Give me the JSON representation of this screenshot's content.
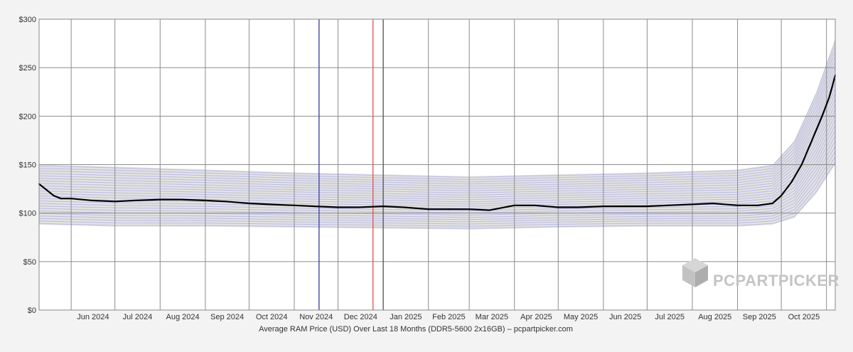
{
  "chart_data": {
    "type": "line",
    "caption": "Average RAM Price (USD) Over Last 18 Months (DDR5-5600 2x16GB) – pcpartpicker.com",
    "x_tick_labels": [
      "Jun 2024",
      "Jul 2024",
      "Aug 2024",
      "Sep 2024",
      "Oct 2024",
      "Nov 2024",
      "Dec 2024",
      "Jan 2025",
      "Feb 2025",
      "Mar 2025",
      "Apr 2025",
      "May 2025",
      "Jun 2025",
      "Jul 2025",
      "Aug 2025",
      "Sep 2025",
      "Oct 2025"
    ],
    "y_tick_labels": [
      "$0",
      "$50",
      "$100",
      "$150",
      "$200",
      "$250",
      "$300"
    ],
    "y_ticks": [
      0,
      50,
      100,
      150,
      200,
      250,
      300
    ],
    "ylim": [
      0,
      300
    ],
    "xlim": [
      "2024-05-10",
      "2025-11-07"
    ],
    "grid": true,
    "vertical_markers": [
      {
        "date": "2024-11-18",
        "color": "#3a3aa0"
      },
      {
        "date": "2024-12-25",
        "color": "#e05050"
      },
      {
        "date": "2025-01-01",
        "color": "#555555"
      }
    ],
    "series": [
      {
        "color": "#000000",
        "x": [
          "2024-05-10",
          "2024-05-15",
          "2024-05-20",
          "2024-05-25",
          "2024-06-01",
          "2024-06-15",
          "2024-07-01",
          "2024-07-15",
          "2024-08-01",
          "2024-08-15",
          "2024-09-01",
          "2024-09-15",
          "2024-10-01",
          "2024-10-15",
          "2024-11-01",
          "2024-11-15",
          "2024-12-01",
          "2024-12-15",
          "2025-01-01",
          "2025-01-15",
          "2025-02-01",
          "2025-02-15",
          "2025-03-01",
          "2025-03-15",
          "2025-04-01",
          "2025-04-15",
          "2025-05-01",
          "2025-05-15",
          "2025-06-01",
          "2025-06-15",
          "2025-07-01",
          "2025-07-15",
          "2025-08-01",
          "2025-08-15",
          "2025-09-01",
          "2025-09-15",
          "2025-09-25",
          "2025-10-01",
          "2025-10-08",
          "2025-10-15",
          "2025-10-22",
          "2025-10-29",
          "2025-11-03",
          "2025-11-07"
        ],
        "values": [
          130,
          124,
          118,
          115,
          115,
          113,
          112,
          113,
          114,
          114,
          113,
          112,
          110,
          109,
          108,
          107,
          106,
          106,
          107,
          106,
          104,
          104,
          104,
          103,
          108,
          108,
          106,
          106,
          107,
          107,
          107,
          108,
          109,
          110,
          108,
          108,
          110,
          118,
          132,
          150,
          175,
          200,
          220,
          242
        ]
      }
    ],
    "price_band": {
      "color": "#7070e0",
      "x": [
        "2024-05-10",
        "2024-07-01",
        "2024-09-01",
        "2024-11-01",
        "2025-01-01",
        "2025-03-01",
        "2025-05-01",
        "2025-07-01",
        "2025-09-01",
        "2025-09-25",
        "2025-10-10",
        "2025-10-25",
        "2025-11-07"
      ],
      "low": [
        88,
        86,
        86,
        85,
        84,
        83,
        85,
        86,
        86,
        88,
        95,
        120,
        150
      ],
      "high": [
        150,
        148,
        145,
        142,
        140,
        138,
        140,
        142,
        145,
        150,
        175,
        225,
        280
      ]
    },
    "watermark": "PCPARTPICKER"
  }
}
